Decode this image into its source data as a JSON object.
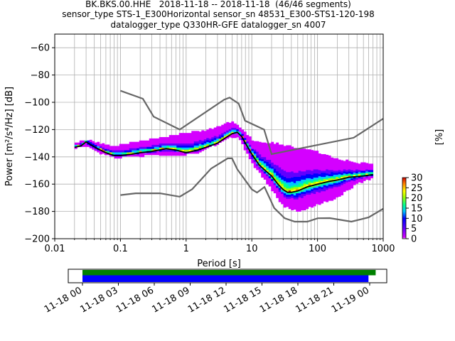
{
  "title_lines": [
    "BK.BKS.00.HHE   2018-11-18 -- 2018-11-18  (46/46 segments)",
    "sensor_type STS-1_E300Horizontal sensor_sn 48531_E300-STS1-120-198",
    "datalogger_type Q330HR-GFE datalogger_sn 4007"
  ],
  "chart_data": [
    {
      "type": "heatmap",
      "xlabel": "Period [s]",
      "ylabel": "Power [m²/s⁴/Hz] [dB]",
      "xscale": "log",
      "xlim": [
        0.01,
        1000
      ],
      "ylim": [
        -200,
        -50
      ],
      "xticks": [
        {
          "value": 0.01,
          "label": "0.01"
        },
        {
          "value": 0.1,
          "label": "0.1"
        },
        {
          "value": 1,
          "label": "1"
        },
        {
          "value": 10,
          "label": "10"
        },
        {
          "value": 100,
          "label": "100"
        },
        {
          "value": 1000,
          "label": "1000"
        }
      ],
      "yticks": [
        -60,
        -80,
        -100,
        -120,
        -140,
        -160,
        -180,
        -200
      ],
      "grid": true,
      "colorbar": {
        "label": "[%]",
        "range": [
          0,
          30
        ],
        "ticks": [
          0,
          5,
          10,
          15,
          20,
          25,
          30
        ]
      },
      "noise_models": [
        {
          "name": "NHNM",
          "color": "#666666",
          "x": [
            0.1,
            0.22,
            0.32,
            0.8,
            3.8,
            4.6,
            6.3,
            7.9,
            15.4,
            20,
            354.8,
            1000
          ],
          "y": [
            -91.5,
            -97.4,
            -110.5,
            -120,
            -98,
            -96.5,
            -101,
            -113.5,
            -120,
            -138,
            -126,
            -112
          ]
        },
        {
          "name": "NLNM",
          "color": "#666666",
          "x": [
            0.1,
            0.17,
            0.4,
            0.8,
            1.24,
            2.4,
            4.3,
            5,
            6,
            10,
            12,
            15.6,
            21.9,
            31.6,
            45,
            70,
            101,
            154,
            328,
            600,
            1000
          ],
          "y": [
            -168,
            -166.7,
            -166.7,
            -169.2,
            -163.7,
            -148.6,
            -141.1,
            -141.1,
            -149,
            -163.8,
            -166.2,
            -162.1,
            -177.5,
            -185,
            -187.5,
            -187.5,
            -185,
            -184.9,
            -187.5,
            -184.4,
            -178
          ]
        }
      ],
      "mode_curve": {
        "x": [
          0.02,
          0.025,
          0.03,
          0.035,
          0.045,
          0.06,
          0.08,
          0.1,
          0.15,
          0.2,
          0.3,
          0.5,
          0.7,
          1,
          1.5,
          2,
          3,
          4,
          5,
          6,
          7,
          8,
          10,
          13,
          16,
          20,
          25,
          30,
          35,
          40,
          50,
          70,
          100,
          150,
          200,
          300,
          500,
          700
        ],
        "y": [
          -133,
          -132,
          -129,
          -131,
          -134,
          -137,
          -139,
          -139,
          -138,
          -137,
          -136,
          -134,
          -135,
          -137,
          -135,
          -133,
          -130,
          -126,
          -123,
          -122,
          -125,
          -130,
          -138,
          -146,
          -150,
          -154,
          -160,
          -164,
          -166,
          -166,
          -165,
          -162,
          -160,
          -158,
          -157,
          -155,
          -154,
          -153
        ]
      },
      "spread": {
        "x": [
          0.02,
          0.03,
          0.05,
          0.08,
          0.1,
          0.2,
          0.4,
          0.6,
          1,
          1.5,
          2,
          3,
          4,
          5,
          6,
          7,
          10,
          15,
          20,
          30,
          50,
          100,
          200,
          400,
          700
        ],
        "upper": [
          -131,
          -128,
          -131,
          -133,
          -132,
          -129,
          -127,
          -125,
          -123,
          -122,
          -121,
          -119,
          -116,
          -115,
          -117,
          -120,
          -128,
          -130,
          -130,
          -132,
          -134,
          -137,
          -142,
          -145,
          -145
        ],
        "lower": [
          -134,
          -133,
          -138,
          -141,
          -141,
          -140,
          -139,
          -139,
          -139,
          -138,
          -135,
          -131,
          -128,
          -126,
          -126,
          -130,
          -145,
          -156,
          -164,
          -176,
          -180,
          -175,
          -170,
          -160,
          -156
        ]
      }
    },
    {
      "type": "timeline",
      "tick_labels": [
        "11-18 00",
        "11-18 03",
        "11-18 06",
        "11-18 09",
        "11-18 12",
        "11-18 15",
        "11-18 18",
        "11-18 21",
        "11-19 00"
      ],
      "series": [
        {
          "color": "#008000",
          "start_hour": 0,
          "end_hour": 24.5
        },
        {
          "color": "#0000ff",
          "start_hour": 0,
          "end_hour": 23.9
        }
      ]
    }
  ]
}
